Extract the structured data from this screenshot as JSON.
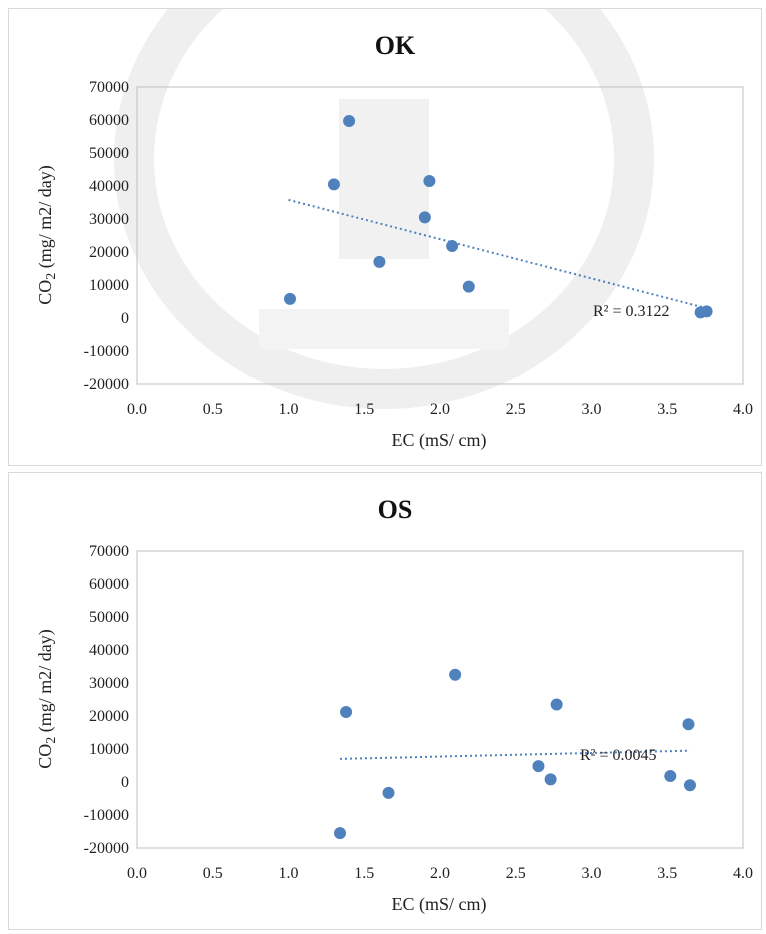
{
  "colors": {
    "point": "#4f81bd",
    "trendline": "#4f81bd",
    "plot_border": "#bfbfbf",
    "watermark": "#ececec"
  },
  "watermark": {
    "description_icon": "university-seal-watermark-icon"
  },
  "chart_data": [
    {
      "type": "scatter",
      "title": "OK",
      "xlabel": "EC (mS/ cm)",
      "ylabel": "CO2 (mg/ m2/ day)",
      "xlim": [
        0.0,
        4.0
      ],
      "ylim": [
        -20000,
        70000
      ],
      "xticks": [
        "0.0",
        "0.5",
        "1.0",
        "1.5",
        "2.0",
        "2.5",
        "3.0",
        "3.5",
        "4.0"
      ],
      "yticks": [
        "70000",
        "60000",
        "50000",
        "40000",
        "30000",
        "20000",
        "10000",
        "0",
        "-10000",
        "-20000"
      ],
      "grid": false,
      "points": [
        {
          "x": 1.01,
          "y": 5800
        },
        {
          "x": 1.3,
          "y": 40500
        },
        {
          "x": 1.4,
          "y": 59700
        },
        {
          "x": 1.6,
          "y": 17000
        },
        {
          "x": 1.9,
          "y": 30500
        },
        {
          "x": 1.93,
          "y": 41500
        },
        {
          "x": 2.08,
          "y": 21800
        },
        {
          "x": 2.19,
          "y": 9500
        },
        {
          "x": 3.72,
          "y": 1700
        },
        {
          "x": 3.76,
          "y": 2000
        }
      ],
      "trendline": {
        "type": "linear",
        "x": [
          1.0,
          3.74
        ],
        "y": [
          35800,
          3200
        ]
      },
      "annotation": "R² = 0.3122"
    },
    {
      "type": "scatter",
      "title": "OS",
      "xlabel": "EC (mS/ cm)",
      "ylabel": "CO2 (mg/ m2/ day)",
      "xlim": [
        0.0,
        4.0
      ],
      "ylim": [
        -20000,
        70000
      ],
      "xticks": [
        "0.0",
        "0.5",
        "1.0",
        "1.5",
        "2.0",
        "2.5",
        "3.0",
        "3.5",
        "4.0"
      ],
      "yticks": [
        "70000",
        "60000",
        "50000",
        "40000",
        "30000",
        "20000",
        "10000",
        "0",
        "-10000",
        "-20000"
      ],
      "grid": false,
      "points": [
        {
          "x": 1.34,
          "y": -15500
        },
        {
          "x": 1.38,
          "y": 21200
        },
        {
          "x": 1.66,
          "y": -3300
        },
        {
          "x": 2.1,
          "y": 32500
        },
        {
          "x": 2.65,
          "y": 4800
        },
        {
          "x": 2.73,
          "y": 800
        },
        {
          "x": 2.77,
          "y": 23500
        },
        {
          "x": 3.52,
          "y": 1800
        },
        {
          "x": 3.64,
          "y": 17500
        },
        {
          "x": 3.65,
          "y": -1000
        }
      ],
      "trendline": {
        "type": "linear",
        "x": [
          1.34,
          3.65
        ],
        "y": [
          7000,
          9500
        ]
      },
      "annotation": "R² = 0.0045"
    }
  ]
}
